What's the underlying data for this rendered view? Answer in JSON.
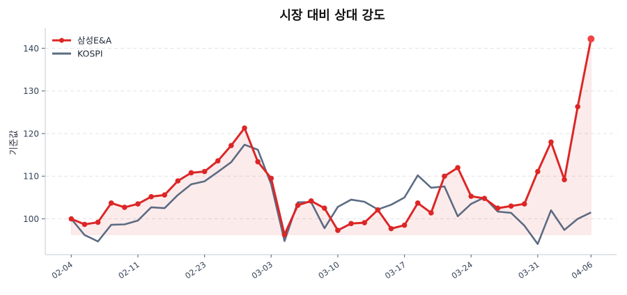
{
  "chart_data": {
    "type": "line",
    "title": "시장 대비 상대 강도",
    "xlabel": "",
    "ylabel": "기준값",
    "ylim": [
      91.6,
      144.8
    ],
    "yticks": [
      100,
      110,
      120,
      130,
      140
    ],
    "grid": "y-dashed",
    "legend": "top-left",
    "x": [
      "02-04",
      "02-05",
      "02-06",
      "02-09",
      "02-10",
      "02-11",
      "02-12",
      "02-13",
      "02-19",
      "02-20",
      "02-23",
      "02-24",
      "02-25",
      "02-26",
      "02-27",
      "03-03",
      "03-04",
      "03-05",
      "03-06",
      "03-09",
      "03-10",
      "03-11",
      "03-12",
      "03-13",
      "03-16",
      "03-17",
      "03-18",
      "03-19",
      "03-20",
      "03-23",
      "03-24",
      "03-25",
      "03-26",
      "03-27",
      "03-30",
      "03-31",
      "04-01",
      "04-02",
      "04-03",
      "04-06"
    ],
    "xticks": [
      "02-04",
      "02-11",
      "02-23",
      "03-03",
      "03-10",
      "03-17",
      "03-24",
      "03-31",
      "04-06"
    ],
    "series": [
      {
        "name": "삼성E&A",
        "color": "#dc2626",
        "markers": true,
        "fill": true,
        "values": [
          100,
          98.7,
          99.2,
          103.7,
          102.7,
          103.5,
          105.2,
          105.6,
          108.9,
          110.8,
          111.1,
          113.6,
          117.2,
          121.3,
          113.4,
          109.5,
          96.3,
          103.2,
          104.2,
          102.5,
          97.3,
          98.9,
          99.1,
          102.1,
          97.7,
          98.5,
          103.7,
          101.4,
          110.0,
          112.0,
          105.3,
          104.8,
          102.5,
          103.0,
          103.5,
          111.1,
          118.0,
          109.2,
          126.3,
          142.2
        ]
      },
      {
        "name": "KOSPI",
        "color": "#5b6b82",
        "markers": false,
        "fill": false,
        "values": [
          100,
          96.2,
          94.7,
          98.6,
          98.7,
          99.6,
          102.7,
          102.5,
          105.6,
          108.1,
          108.8,
          111.0,
          113.3,
          117.4,
          116.2,
          108.1,
          94.8,
          103.9,
          103.9,
          97.8,
          102.8,
          104.5,
          104.0,
          102.2,
          103.3,
          105.0,
          110.2,
          107.3,
          107.6,
          100.6,
          103.5,
          105.0,
          101.7,
          101.4,
          98.4,
          94.1,
          102.0,
          97.4,
          100.0,
          101.5
        ]
      }
    ]
  }
}
